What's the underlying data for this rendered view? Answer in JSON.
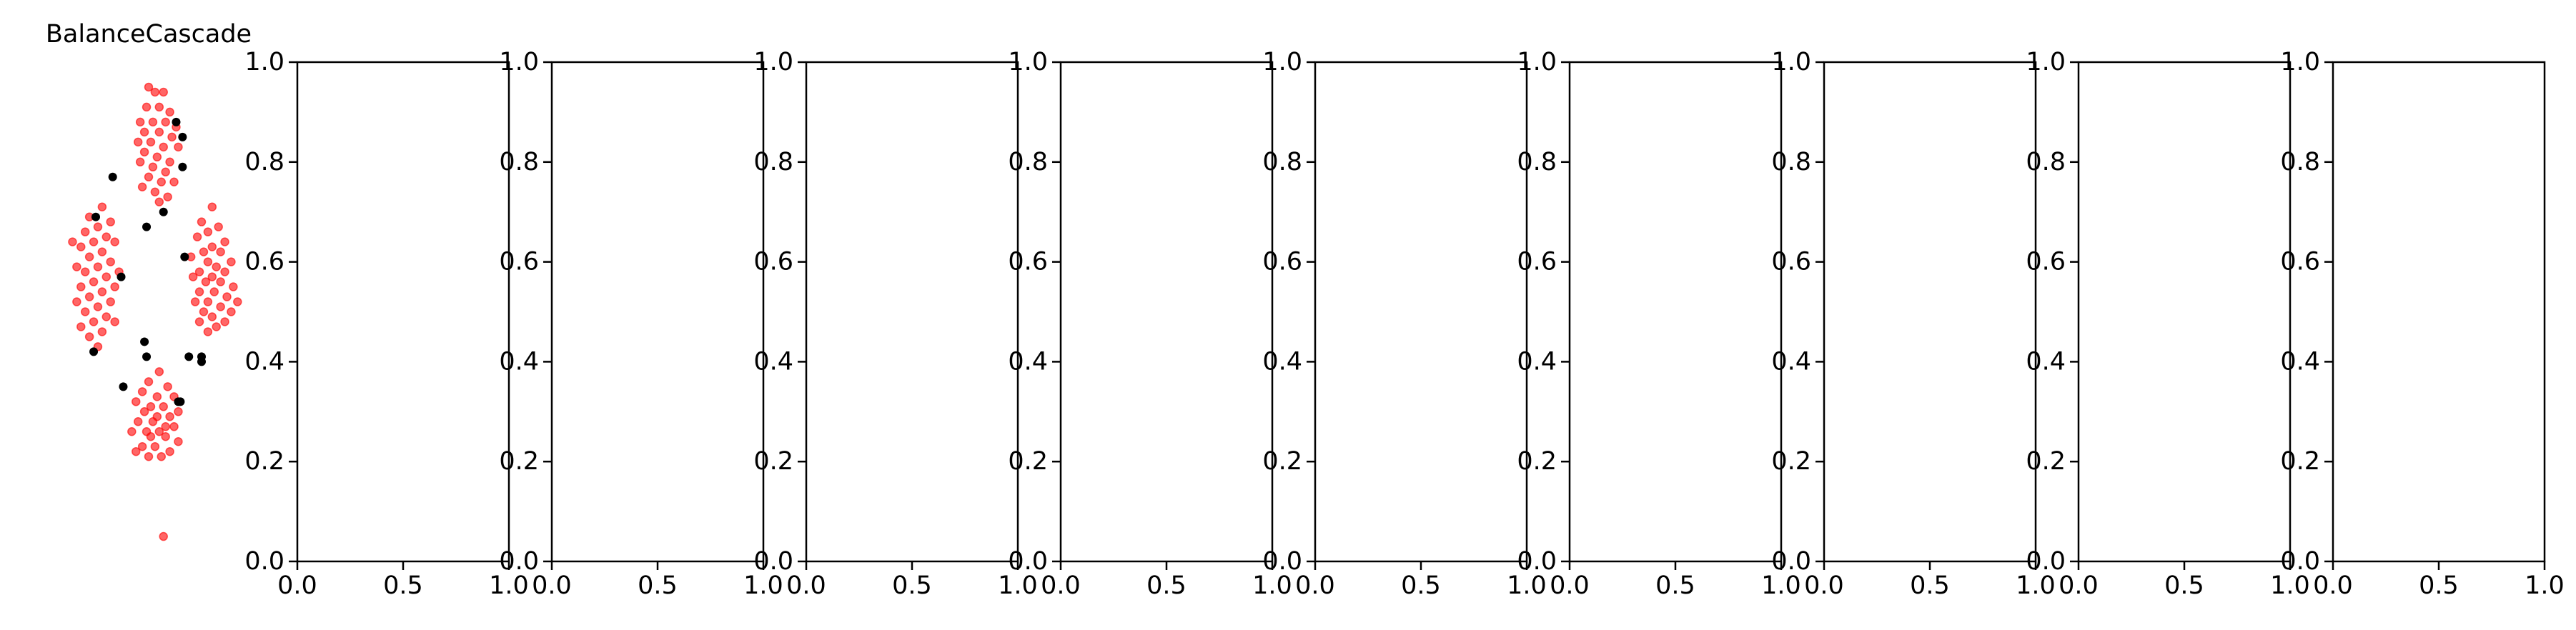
{
  "figure": {
    "background": "#ffffff",
    "axis_color": "#000000",
    "point_colors": {
      "majority": "#ff0000",
      "minority": "#000000"
    }
  },
  "chart_data": [
    {
      "type": "scatter",
      "title": "BalanceCascade",
      "axes_visible": false,
      "xlim": [
        0,
        1
      ],
      "ylim": [
        0,
        1
      ],
      "series": [
        {
          "role": "majority",
          "color": "#ff0000",
          "opacity": 0.6,
          "points": [
            [
              0.5,
              0.95
            ],
            [
              0.53,
              0.94
            ],
            [
              0.57,
              0.94
            ],
            [
              0.49,
              0.91
            ],
            [
              0.55,
              0.91
            ],
            [
              0.6,
              0.9
            ],
            [
              0.46,
              0.88
            ],
            [
              0.52,
              0.88
            ],
            [
              0.58,
              0.88
            ],
            [
              0.63,
              0.87
            ],
            [
              0.48,
              0.86
            ],
            [
              0.55,
              0.86
            ],
            [
              0.61,
              0.85
            ],
            [
              0.45,
              0.84
            ],
            [
              0.51,
              0.84
            ],
            [
              0.57,
              0.83
            ],
            [
              0.64,
              0.83
            ],
            [
              0.48,
              0.82
            ],
            [
              0.54,
              0.81
            ],
            [
              0.6,
              0.8
            ],
            [
              0.46,
              0.8
            ],
            [
              0.52,
              0.79
            ],
            [
              0.58,
              0.78
            ],
            [
              0.5,
              0.77
            ],
            [
              0.56,
              0.76
            ],
            [
              0.62,
              0.76
            ],
            [
              0.47,
              0.75
            ],
            [
              0.53,
              0.74
            ],
            [
              0.59,
              0.73
            ],
            [
              0.55,
              0.72
            ],
            [
              0.28,
              0.71
            ],
            [
              0.22,
              0.69
            ],
            [
              0.32,
              0.68
            ],
            [
              0.26,
              0.67
            ],
            [
              0.2,
              0.66
            ],
            [
              0.3,
              0.65
            ],
            [
              0.14,
              0.64
            ],
            [
              0.24,
              0.64
            ],
            [
              0.34,
              0.64
            ],
            [
              0.18,
              0.63
            ],
            [
              0.28,
              0.62
            ],
            [
              0.22,
              0.61
            ],
            [
              0.32,
              0.6
            ],
            [
              0.26,
              0.59
            ],
            [
              0.16,
              0.59
            ],
            [
              0.36,
              0.58
            ],
            [
              0.2,
              0.58
            ],
            [
              0.3,
              0.57
            ],
            [
              0.24,
              0.56
            ],
            [
              0.18,
              0.55
            ],
            [
              0.34,
              0.55
            ],
            [
              0.28,
              0.54
            ],
            [
              0.22,
              0.53
            ],
            [
              0.32,
              0.52
            ],
            [
              0.16,
              0.52
            ],
            [
              0.26,
              0.51
            ],
            [
              0.2,
              0.5
            ],
            [
              0.3,
              0.49
            ],
            [
              0.24,
              0.48
            ],
            [
              0.34,
              0.48
            ],
            [
              0.18,
              0.47
            ],
            [
              0.28,
              0.46
            ],
            [
              0.22,
              0.45
            ],
            [
              0.26,
              0.43
            ],
            [
              0.8,
              0.71
            ],
            [
              0.75,
              0.68
            ],
            [
              0.83,
              0.67
            ],
            [
              0.78,
              0.66
            ],
            [
              0.73,
              0.65
            ],
            [
              0.86,
              0.64
            ],
            [
              0.8,
              0.63
            ],
            [
              0.76,
              0.62
            ],
            [
              0.84,
              0.62
            ],
            [
              0.7,
              0.61
            ],
            [
              0.89,
              0.6
            ],
            [
              0.78,
              0.6
            ],
            [
              0.82,
              0.59
            ],
            [
              0.74,
              0.58
            ],
            [
              0.86,
              0.58
            ],
            [
              0.8,
              0.57
            ],
            [
              0.71,
              0.57
            ],
            [
              0.77,
              0.56
            ],
            [
              0.84,
              0.56
            ],
            [
              0.9,
              0.55
            ],
            [
              0.74,
              0.54
            ],
            [
              0.81,
              0.54
            ],
            [
              0.87,
              0.53
            ],
            [
              0.78,
              0.52
            ],
            [
              0.72,
              0.52
            ],
            [
              0.84,
              0.51
            ],
            [
              0.76,
              0.5
            ],
            [
              0.89,
              0.5
            ],
            [
              0.8,
              0.49
            ],
            [
              0.86,
              0.48
            ],
            [
              0.74,
              0.48
            ],
            [
              0.82,
              0.47
            ],
            [
              0.78,
              0.46
            ],
            [
              0.92,
              0.52
            ],
            [
              0.55,
              0.38
            ],
            [
              0.5,
              0.36
            ],
            [
              0.59,
              0.35
            ],
            [
              0.47,
              0.34
            ],
            [
              0.54,
              0.33
            ],
            [
              0.62,
              0.33
            ],
            [
              0.44,
              0.32
            ],
            [
              0.51,
              0.31
            ],
            [
              0.57,
              0.31
            ],
            [
              0.64,
              0.3
            ],
            [
              0.48,
              0.3
            ],
            [
              0.54,
              0.29
            ],
            [
              0.6,
              0.29
            ],
            [
              0.45,
              0.28
            ],
            [
              0.52,
              0.28
            ],
            [
              0.58,
              0.27
            ],
            [
              0.62,
              0.27
            ],
            [
              0.49,
              0.26
            ],
            [
              0.55,
              0.26
            ],
            [
              0.42,
              0.26
            ],
            [
              0.51,
              0.25
            ],
            [
              0.58,
              0.25
            ],
            [
              0.64,
              0.24
            ],
            [
              0.47,
              0.23
            ],
            [
              0.53,
              0.23
            ],
            [
              0.44,
              0.22
            ],
            [
              0.6,
              0.22
            ],
            [
              0.56,
              0.21
            ],
            [
              0.5,
              0.21
            ],
            [
              0.57,
              0.05
            ]
          ]
        },
        {
          "role": "minority",
          "color": "#000000",
          "opacity": 1,
          "points": [
            [
              0.63,
              0.88
            ],
            [
              0.66,
              0.85
            ],
            [
              0.66,
              0.79
            ],
            [
              0.33,
              0.77
            ],
            [
              0.57,
              0.7
            ],
            [
              0.25,
              0.69
            ],
            [
              0.49,
              0.67
            ],
            [
              0.67,
              0.61
            ],
            [
              0.37,
              0.57
            ],
            [
              0.24,
              0.42
            ],
            [
              0.48,
              0.44
            ],
            [
              0.49,
              0.41
            ],
            [
              0.69,
              0.41
            ],
            [
              0.75,
              0.41
            ],
            [
              0.75,
              0.4
            ],
            [
              0.38,
              0.35
            ],
            [
              0.64,
              0.32
            ],
            [
              0.65,
              0.32
            ]
          ]
        }
      ]
    },
    {
      "type": "scatter",
      "xlim": [
        0,
        1
      ],
      "ylim": [
        0,
        1
      ],
      "xticks": [
        "0.0",
        "0.5",
        "1.0"
      ],
      "yticks": [
        "0.0",
        "0.2",
        "0.4",
        "0.6",
        "0.8",
        "1.0"
      ],
      "series": []
    },
    {
      "type": "scatter",
      "xlim": [
        0,
        1
      ],
      "ylim": [
        0,
        1
      ],
      "xticks": [
        "0.0",
        "0.5",
        "1.0"
      ],
      "yticks": [
        "0.0",
        "0.2",
        "0.4",
        "0.6",
        "0.8",
        "1.0"
      ],
      "series": []
    },
    {
      "type": "scatter",
      "xlim": [
        0,
        1
      ],
      "ylim": [
        0,
        1
      ],
      "xticks": [
        "0.0",
        "0.5",
        "1.0"
      ],
      "yticks": [
        "0.0",
        "0.2",
        "0.4",
        "0.6",
        "0.8",
        "1.0"
      ],
      "series": []
    },
    {
      "type": "scatter",
      "xlim": [
        0,
        1
      ],
      "ylim": [
        0,
        1
      ],
      "xticks": [
        "0.0",
        "0.5",
        "1.0"
      ],
      "yticks": [
        "0.0",
        "0.2",
        "0.4",
        "0.6",
        "0.8",
        "1.0"
      ],
      "series": []
    },
    {
      "type": "scatter",
      "xlim": [
        0,
        1
      ],
      "ylim": [
        0,
        1
      ],
      "xticks": [
        "0.0",
        "0.5",
        "1.0"
      ],
      "yticks": [
        "0.0",
        "0.2",
        "0.4",
        "0.6",
        "0.8",
        "1.0"
      ],
      "series": []
    },
    {
      "type": "scatter",
      "xlim": [
        0,
        1
      ],
      "ylim": [
        0,
        1
      ],
      "xticks": [
        "0.0",
        "0.5",
        "1.0"
      ],
      "yticks": [
        "0.0",
        "0.2",
        "0.4",
        "0.6",
        "0.8",
        "1.0"
      ],
      "series": []
    },
    {
      "type": "scatter",
      "xlim": [
        0,
        1
      ],
      "ylim": [
        0,
        1
      ],
      "xticks": [
        "0.0",
        "0.5",
        "1.0"
      ],
      "yticks": [
        "0.0",
        "0.2",
        "0.4",
        "0.6",
        "0.8",
        "1.0"
      ],
      "series": []
    },
    {
      "type": "scatter",
      "xlim": [
        0,
        1
      ],
      "ylim": [
        0,
        1
      ],
      "xticks": [
        "0.0",
        "0.5",
        "1.0"
      ],
      "yticks": [
        "0.0",
        "0.2",
        "0.4",
        "0.6",
        "0.8",
        "1.0"
      ],
      "series": []
    },
    {
      "type": "scatter",
      "xlim": [
        0,
        1
      ],
      "ylim": [
        0,
        1
      ],
      "xticks": [
        "0.0",
        "0.5",
        "1.0"
      ],
      "yticks": [
        "0.0",
        "0.2",
        "0.4",
        "0.6",
        "0.8",
        "1.0"
      ],
      "series": []
    }
  ]
}
